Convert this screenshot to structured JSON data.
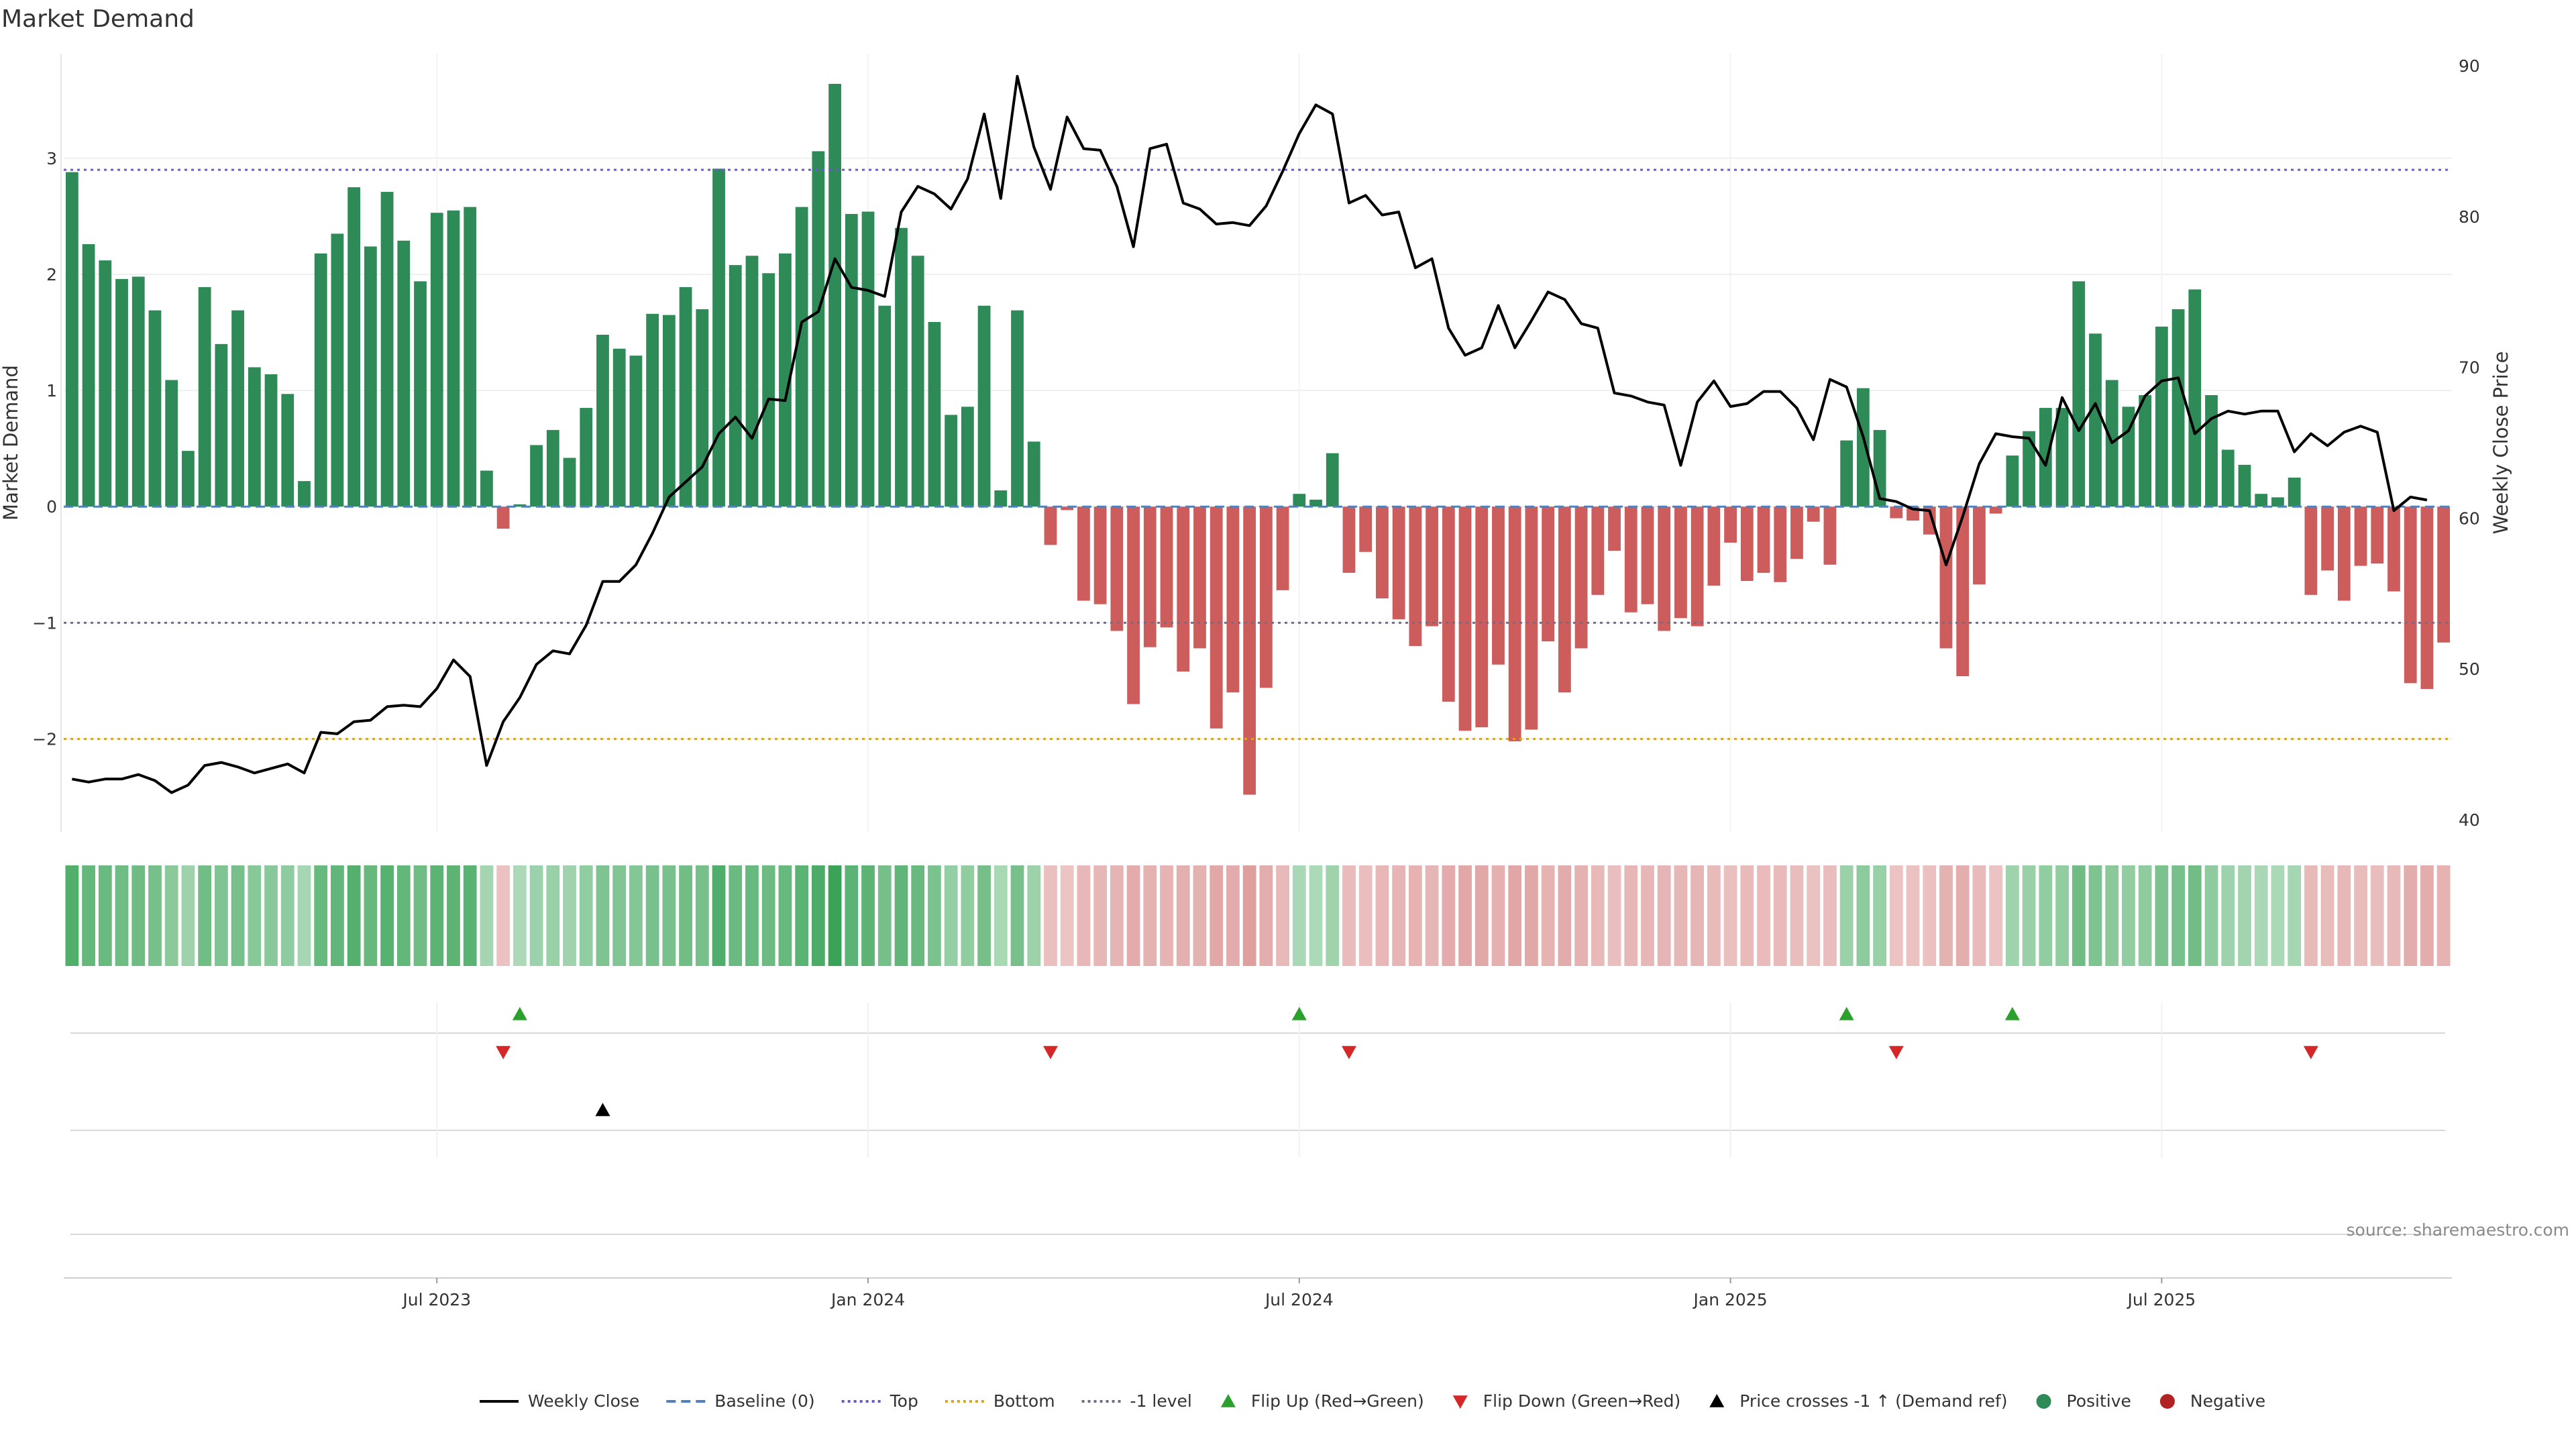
{
  "title": "Market Demand",
  "source": "source: sharemaestro.com",
  "colors": {
    "positive": "#2e8b57",
    "negative": "#cd5c5c",
    "price": "#000000",
    "top": "#6a5acd",
    "bottom": "#daa520",
    "minus_one": "#6e6e8a",
    "baseline": "#4f81bd",
    "flip_up": "#2ca02c",
    "flip_down": "#d62728"
  },
  "legend": [
    {
      "label": "Weekly Close",
      "kind": "line-solid",
      "color": "#000000"
    },
    {
      "label": "Baseline (0)",
      "kind": "line-dash",
      "color": "#4f81bd"
    },
    {
      "label": "Top",
      "kind": "line-dot",
      "color": "#6a5acd"
    },
    {
      "label": "Bottom",
      "kind": "line-dot",
      "color": "#daa520"
    },
    {
      "label": "-1 level",
      "kind": "line-dot",
      "color": "#6e6e8a"
    },
    {
      "label": "Flip Up (Red→Green)",
      "kind": "tri-up",
      "color": "#2ca02c"
    },
    {
      "label": "Flip Down (Green→Red)",
      "kind": "tri-down",
      "color": "#d62728"
    },
    {
      "label": "Price crosses -1 ↑ (Demand ref)",
      "kind": "tri-up",
      "color": "#000000"
    },
    {
      "label": "Positive",
      "kind": "dot",
      "color": "#2e8b57"
    },
    {
      "label": "Negative",
      "kind": "dot",
      "color": "#b22222"
    }
  ],
  "chart_data": {
    "type": "bar",
    "title": "Market Demand",
    "ylabel": "Market Demand",
    "y2label": "Weekly Close Price",
    "ylim": [
      -2.8,
      3.9
    ],
    "y2lim": [
      39.2,
      90.8
    ],
    "yticks": [
      -2,
      -1,
      0,
      1,
      2,
      3
    ],
    "y2ticks": [
      40,
      50,
      60,
      70,
      80,
      90
    ],
    "xticks": [
      {
        "label": "Jul 2023",
        "week": 22
      },
      {
        "label": "Jan 2024",
        "week": 48
      },
      {
        "label": "Jul 2024",
        "week": 74
      },
      {
        "label": "Jan 2025",
        "week": 100
      },
      {
        "label": "Jul 2025",
        "week": 126
      }
    ],
    "reference_lines": {
      "top": 2.9,
      "bottom": -2.0,
      "minus_one": -1.0,
      "baseline": 0
    },
    "demand": [
      2.88,
      2.26,
      2.12,
      1.96,
      1.98,
      1.69,
      1.09,
      0.48,
      1.89,
      1.4,
      1.69,
      1.2,
      1.14,
      0.97,
      0.22,
      2.18,
      2.35,
      2.75,
      2.24,
      2.71,
      2.29,
      1.94,
      2.53,
      2.55,
      2.58,
      0.31,
      -0.19,
      0.02,
      0.53,
      0.66,
      0.42,
      0.85,
      1.48,
      1.36,
      1.3,
      1.66,
      1.65,
      1.89,
      1.7,
      2.91,
      2.08,
      2.16,
      2.01,
      2.18,
      2.58,
      3.06,
      3.64,
      2.52,
      2.54,
      1.73,
      2.4,
      2.16,
      1.59,
      0.79,
      0.86,
      1.73,
      0.14,
      1.69,
      0.56,
      -0.33,
      -0.03,
      -0.81,
      -0.84,
      -1.07,
      -1.7,
      -1.21,
      -1.04,
      -1.42,
      -1.22,
      -1.91,
      -1.6,
      -2.48,
      -1.56,
      -0.72,
      0.11,
      0.06,
      0.46,
      -0.57,
      -0.39,
      -0.79,
      -0.97,
      -1.2,
      -1.03,
      -1.68,
      -1.93,
      -1.9,
      -1.36,
      -2.02,
      -1.92,
      -1.16,
      -1.6,
      -1.22,
      -0.76,
      -0.38,
      -0.91,
      -0.84,
      -1.07,
      -0.96,
      -1.03,
      -0.68,
      -0.31,
      -0.64,
      -0.57,
      -0.65,
      -0.45,
      -0.13,
      -0.5,
      0.57,
      1.02,
      0.66,
      -0.1,
      -0.12,
      -0.24,
      -1.22,
      -1.46,
      -0.67,
      -0.06,
      0.44,
      0.65,
      0.85,
      0.85,
      1.94,
      1.49,
      1.09,
      0.86,
      0.96,
      1.55,
      1.7,
      1.87,
      0.96,
      0.49,
      0.36,
      0.11,
      0.08,
      0.25,
      -0.76,
      -0.55,
      -0.81,
      -0.51,
      -0.49,
      -0.73,
      -1.52,
      -1.57,
      -1.17
    ],
    "price": [
      42.7,
      42.5,
      42.7,
      42.7,
      43.0,
      42.6,
      41.8,
      42.3,
      43.6,
      43.8,
      43.5,
      43.1,
      43.4,
      43.7,
      43.1,
      45.8,
      45.7,
      46.5,
      46.6,
      47.5,
      47.6,
      47.5,
      48.7,
      50.6,
      49.5,
      43.6,
      46.5,
      48.1,
      50.3,
      51.2,
      51.0,
      52.9,
      55.8,
      55.8,
      56.9,
      59.0,
      61.4,
      62.4,
      63.4,
      65.6,
      66.7,
      65.3,
      67.9,
      67.8,
      73.0,
      73.7,
      77.2,
      75.3,
      75.1,
      74.7,
      80.3,
      82.0,
      81.5,
      80.5,
      82.5,
      86.8,
      81.2,
      89.3,
      84.6,
      81.8,
      86.6,
      84.5,
      84.4,
      82.0,
      78.0,
      84.5,
      84.8,
      80.9,
      80.5,
      79.5,
      79.6,
      79.4,
      80.7,
      83.0,
      85.5,
      87.4,
      86.8,
      80.9,
      81.4,
      80.1,
      80.3,
      76.6,
      77.2,
      72.6,
      70.8,
      71.3,
      74.1,
      71.3,
      73.1,
      75.0,
      74.5,
      72.9,
      72.6,
      68.3,
      68.1,
      67.7,
      67.5,
      63.5,
      67.7,
      69.1,
      67.4,
      67.6,
      68.4,
      68.4,
      67.3,
      65.2,
      69.2,
      68.7,
      65.4,
      61.3,
      61.1,
      60.6,
      60.5,
      56.9,
      60.1,
      63.6,
      65.6,
      65.4,
      65.3,
      63.5,
      68.0,
      65.8,
      67.6,
      65.0,
      65.8,
      68.1,
      69.1,
      69.3,
      65.6,
      66.6,
      67.1,
      66.9,
      67.1,
      67.1,
      64.4,
      65.6,
      64.8,
      65.7,
      66.1,
      65.7,
      60.5,
      61.4,
      61.2
    ],
    "flip_up_weeks": [
      27,
      74,
      107,
      117
    ],
    "flip_down_weeks": [
      26,
      59,
      77,
      110,
      135
    ],
    "price_cross_weeks": [
      32
    ]
  }
}
